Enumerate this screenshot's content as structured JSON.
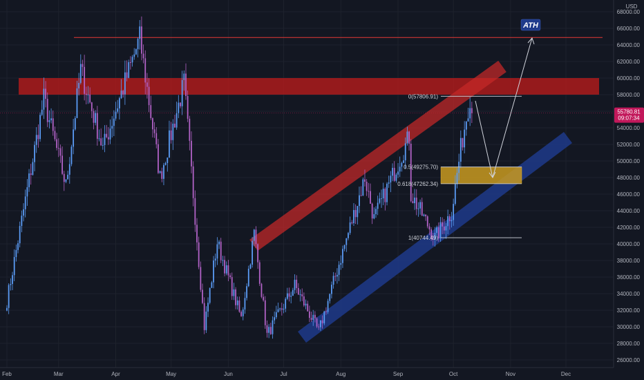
{
  "colors": {
    "background": "#131722",
    "grid": "#1e222d",
    "up": "#5b9cf6",
    "down": "#b162c6",
    "resistance_zone": "#b71c1c",
    "ath_line": "#e53935",
    "red_channel": "#c62828",
    "blue_channel": "#1e3a8a",
    "golden_zone": "#c99a20",
    "price_tag": "#c2185b",
    "ath_badge": "#1e3a8a"
  },
  "chart_data": {
    "type": "candlestick",
    "y_axis_unit": "USD",
    "ylim": [
      25000,
      68000
    ],
    "y_ticks": [
      26000,
      28000,
      30000,
      32000,
      34000,
      36000,
      38000,
      40000,
      42000,
      44000,
      46000,
      48000,
      50000,
      52000,
      54000,
      56000,
      58000,
      60000,
      62000,
      64000,
      66000,
      68000
    ],
    "x_labels": [
      "Feb",
      "Mar",
      "Apr",
      "May",
      "Jun",
      "Jul",
      "Aug",
      "Sep",
      "Oct",
      "Nov",
      "Dec"
    ],
    "x_range": [
      "2021-02-01",
      "2021-12-31"
    ],
    "price_tag": {
      "price": "55780.81",
      "countdown": "09:07:34"
    },
    "fib_levels": [
      {
        "label": "0(57806.91)",
        "value": 57806.91
      },
      {
        "label": "0.5(49275.70)",
        "value": 49275.7
      },
      {
        "label": "0.618(47262.34)",
        "value": 47262.34
      },
      {
        "label": "1(40744.49)",
        "value": 40744.49
      }
    ],
    "ath_label": "ATH",
    "ath_line_value": 64900,
    "resistance_zone": [
      58000,
      60000
    ],
    "key_points": [
      {
        "date": "2021-02-01",
        "price": 33100
      },
      {
        "date": "2021-02-21",
        "price": 57500
      },
      {
        "date": "2021-03-05",
        "price": 47000
      },
      {
        "date": "2021-03-13",
        "price": 61000
      },
      {
        "date": "2021-03-25",
        "price": 51500
      },
      {
        "date": "2021-04-14",
        "price": 64800
      },
      {
        "date": "2021-04-25",
        "price": 48000
      },
      {
        "date": "2021-05-08",
        "price": 59400
      },
      {
        "date": "2021-05-19",
        "price": 30000
      },
      {
        "date": "2021-05-26",
        "price": 40200
      },
      {
        "date": "2021-06-08",
        "price": 31000
      },
      {
        "date": "2021-06-15",
        "price": 41300
      },
      {
        "date": "2021-06-22",
        "price": 29000
      },
      {
        "date": "2021-07-07",
        "price": 35000
      },
      {
        "date": "2021-07-20",
        "price": 29400
      },
      {
        "date": "2021-08-14",
        "price": 48000
      },
      {
        "date": "2021-08-19",
        "price": 43000
      },
      {
        "date": "2021-09-07",
        "price": 52900
      },
      {
        "date": "2021-09-08",
        "price": 46000
      },
      {
        "date": "2021-09-21",
        "price": 40700
      },
      {
        "date": "2021-09-30",
        "price": 43800
      },
      {
        "date": "2021-10-05",
        "price": 51500
      },
      {
        "date": "2021-10-10",
        "price": 57800
      },
      {
        "date": "2021-10-11",
        "price": 55780
      }
    ]
  }
}
